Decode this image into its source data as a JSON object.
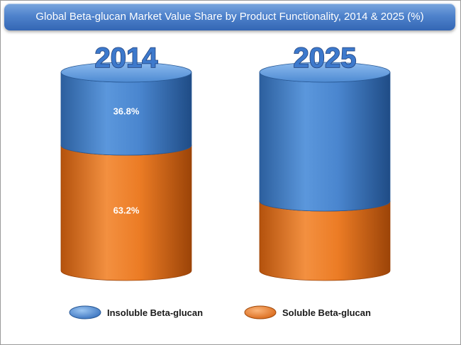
{
  "chart_data": {
    "type": "bar",
    "stacked": true,
    "title": "Global Beta-glucan Market Value Share by Product Functionality, 2014 & 2025 (%)",
    "categories": [
      "2014",
      "2025"
    ],
    "series": [
      {
        "name": "Insoluble Beta-glucan",
        "color": "#4f8fd6",
        "values": [
          36.8,
          65.0
        ],
        "labels": [
          "36.8%",
          ""
        ]
      },
      {
        "name": "Soluble Beta-glucan",
        "color": "#ee7a22",
        "values": [
          63.2,
          35.0
        ],
        "labels": [
          "63.2%",
          ""
        ]
      }
    ],
    "ylim": [
      0,
      100
    ],
    "legend_position": "bottom",
    "grid": false
  }
}
